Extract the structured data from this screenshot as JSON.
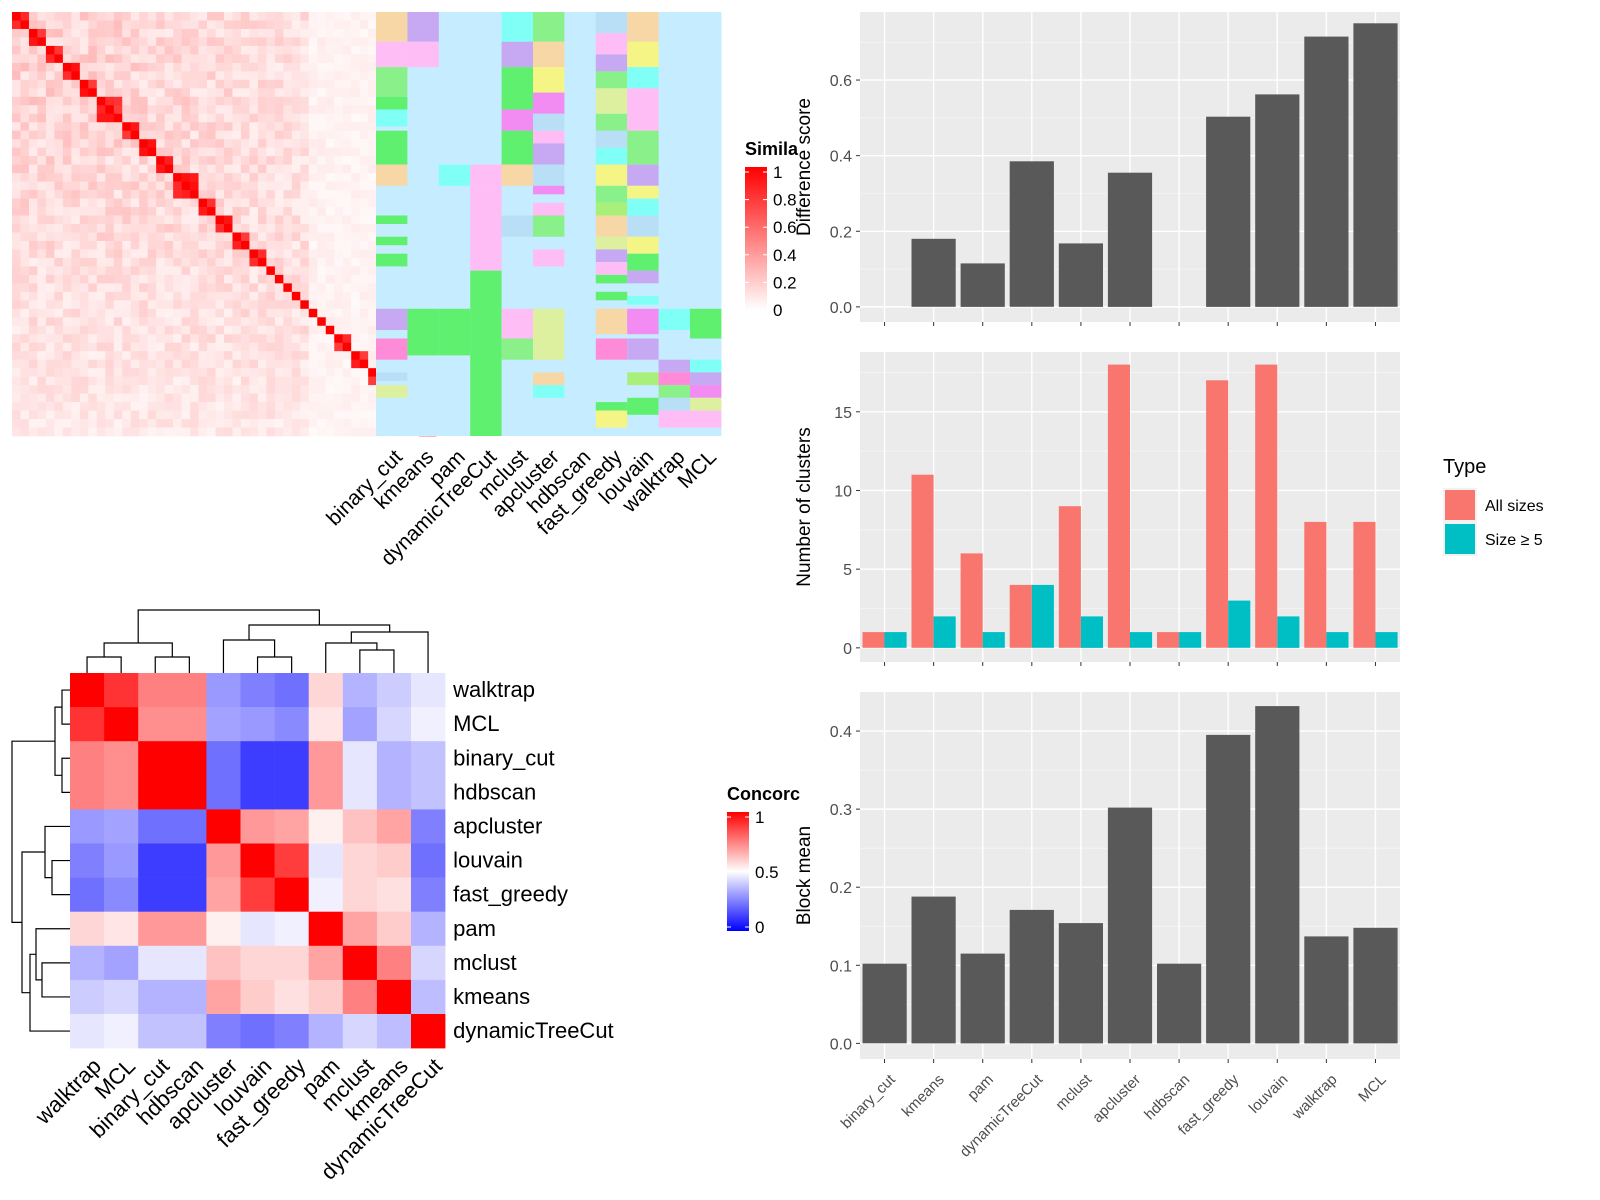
{
  "methods_order": [
    "binary_cut",
    "kmeans",
    "pam",
    "dynamicTreeCut",
    "mclust",
    "apcluster",
    "hdbscan",
    "fast_greedy",
    "louvain",
    "walktrap",
    "MCL"
  ],
  "colors": {
    "panel_bg": "#EBEBEB",
    "grid": "#FFFFFF",
    "bar_dark": "#595959",
    "all_sizes": "#F8766D",
    "size_ge5": "#00BFC4",
    "sim_high": "#FF0000",
    "concord_high": "#FF0000",
    "concord_low": "#0000FF",
    "class_bg": "#C6ECFF"
  },
  "similarity_legend": {
    "title": "Simila",
    "ticks": [
      "1",
      "0.8",
      "0.6",
      "0.4",
      "0.2",
      "0"
    ]
  },
  "concordance_legend": {
    "title": "Concorc",
    "ticks": [
      "1",
      "0.5",
      "0"
    ]
  },
  "type_legend": {
    "title": "Type",
    "items": [
      "All sizes",
      "Size ≥ 5"
    ]
  },
  "chart_data": [
    {
      "type": "heatmap",
      "name": "consensus-similarity-heatmap",
      "size": 50,
      "scale": [
        0,
        1
      ],
      "columns": [
        "binary_cut",
        "kmeans",
        "pam",
        "dynamicTreeCut",
        "mclust",
        "apcluster",
        "hdbscan",
        "fast_greedy",
        "louvain",
        "walktrap",
        "MCL"
      ]
    },
    {
      "type": "heatmap",
      "name": "concordance-heatmap",
      "rows": [
        "walktrap",
        "MCL",
        "binary_cut",
        "hdbscan",
        "apcluster",
        "louvain",
        "fast_greedy",
        "pam",
        "mclust",
        "kmeans",
        "dynamicTreeCut"
      ],
      "columns": [
        "walktrap",
        "MCL",
        "binary_cut",
        "hdbscan",
        "apcluster",
        "louvain",
        "fast_greedy",
        "pam",
        "mclust",
        "kmeans",
        "dynamicTreeCut"
      ],
      "values": [
        [
          1.0,
          0.9,
          0.75,
          0.75,
          0.3,
          0.25,
          0.22,
          0.58,
          0.35,
          0.4,
          0.45
        ],
        [
          0.9,
          1.0,
          0.72,
          0.72,
          0.32,
          0.3,
          0.27,
          0.55,
          0.32,
          0.42,
          0.47
        ],
        [
          0.75,
          0.72,
          1.0,
          1.0,
          0.22,
          0.12,
          0.12,
          0.7,
          0.45,
          0.35,
          0.38
        ],
        [
          0.75,
          0.72,
          1.0,
          1.0,
          0.22,
          0.12,
          0.12,
          0.7,
          0.45,
          0.35,
          0.38
        ],
        [
          0.3,
          0.32,
          0.22,
          0.22,
          1.0,
          0.7,
          0.68,
          0.53,
          0.62,
          0.68,
          0.25
        ],
        [
          0.25,
          0.3,
          0.12,
          0.12,
          0.7,
          1.0,
          0.88,
          0.45,
          0.58,
          0.6,
          0.22
        ],
        [
          0.22,
          0.27,
          0.12,
          0.12,
          0.68,
          0.88,
          1.0,
          0.47,
          0.58,
          0.56,
          0.25
        ],
        [
          0.58,
          0.55,
          0.7,
          0.7,
          0.53,
          0.45,
          0.47,
          1.0,
          0.68,
          0.6,
          0.35
        ],
        [
          0.35,
          0.32,
          0.45,
          0.45,
          0.62,
          0.58,
          0.58,
          0.68,
          1.0,
          0.75,
          0.42
        ],
        [
          0.4,
          0.42,
          0.35,
          0.35,
          0.68,
          0.6,
          0.56,
          0.6,
          0.75,
          1.0,
          0.37
        ],
        [
          0.45,
          0.47,
          0.38,
          0.38,
          0.25,
          0.22,
          0.25,
          0.35,
          0.42,
          0.37,
          1.0
        ]
      ],
      "scale": [
        0,
        1
      ]
    },
    {
      "type": "bar",
      "name": "difference-score-chart",
      "categories": [
        "binary_cut",
        "kmeans",
        "pam",
        "dynamicTreeCut",
        "mclust",
        "apcluster",
        "hdbscan",
        "fast_greedy",
        "louvain",
        "walktrap",
        "MCL"
      ],
      "values": [
        0,
        0.18,
        0.115,
        0.385,
        0.168,
        0.355,
        0,
        0.503,
        0.562,
        0.715,
        0.75
      ],
      "ylabel": "Difference score",
      "yticks": [
        "0.0",
        "0.2",
        "0.4",
        "0.6"
      ],
      "ylim": [
        -0.04,
        0.78
      ]
    },
    {
      "type": "bar",
      "name": "number-of-clusters-chart",
      "categories": [
        "binary_cut",
        "kmeans",
        "pam",
        "dynamicTreeCut",
        "mclust",
        "apcluster",
        "hdbscan",
        "fast_greedy",
        "louvain",
        "walktrap",
        "MCL"
      ],
      "series": [
        {
          "name": "All sizes",
          "values": [
            1,
            11,
            6,
            4,
            9,
            18,
            1,
            17,
            18,
            8,
            8
          ]
        },
        {
          "name": "Size ≥ 5",
          "values": [
            1,
            2,
            1,
            4,
            2,
            1,
            1,
            3,
            2,
            1,
            1
          ]
        }
      ],
      "ylabel": "Number of clusters",
      "yticks": [
        "0",
        "5",
        "10",
        "15"
      ],
      "ylim": [
        -0.9,
        18.8
      ]
    },
    {
      "type": "bar",
      "name": "block-mean-chart",
      "categories": [
        "binary_cut",
        "kmeans",
        "pam",
        "dynamicTreeCut",
        "mclust",
        "apcluster",
        "hdbscan",
        "fast_greedy",
        "louvain",
        "walktrap",
        "MCL"
      ],
      "values": [
        0.102,
        0.188,
        0.115,
        0.171,
        0.154,
        0.302,
        0.102,
        0.395,
        0.432,
        0.137,
        0.148
      ],
      "ylabel": "Block mean",
      "yticks": [
        "0.0",
        "0.1",
        "0.2",
        "0.3",
        "0.4"
      ],
      "ylim": [
        -0.02,
        0.45
      ]
    }
  ]
}
